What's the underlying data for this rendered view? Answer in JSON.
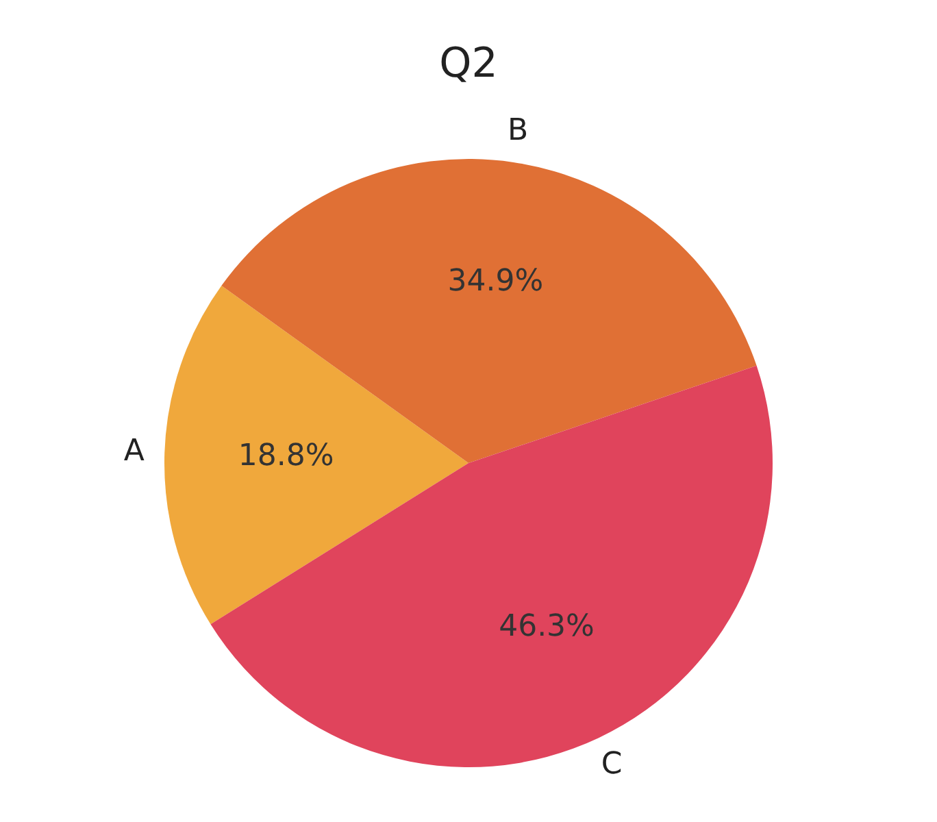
{
  "chart_data": {
    "type": "pie",
    "title": "Q2",
    "categories": [
      "A",
      "B",
      "C"
    ],
    "values": [
      18.8,
      34.9,
      46.3
    ],
    "value_labels": [
      "18.8%",
      "34.9%",
      "46.3%"
    ],
    "colors": [
      "#f0a83c",
      "#e07035",
      "#e0445c"
    ],
    "legend": false
  }
}
